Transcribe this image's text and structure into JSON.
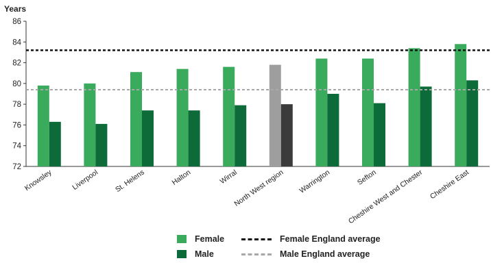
{
  "chart_data": {
    "type": "bar",
    "ylabel": "Years",
    "ylim": [
      72,
      86
    ],
    "yticks": [
      72,
      74,
      76,
      78,
      80,
      82,
      84,
      86
    ],
    "categories": [
      "Knowsley",
      "Liverpool",
      "St. Helens",
      "Halton",
      "Wirral",
      "North West region",
      "Warrington",
      "Sefton",
      "Cheshire West and Chester",
      "Cheshire East"
    ],
    "series": [
      {
        "name": "Female",
        "values": [
          79.8,
          80.0,
          81.1,
          81.4,
          81.6,
          81.8,
          82.4,
          82.4,
          83.4,
          83.8
        ]
      },
      {
        "name": "Male",
        "values": [
          76.3,
          76.1,
          77.4,
          77.4,
          77.9,
          78.0,
          79.0,
          78.1,
          79.7,
          80.3
        ]
      }
    ],
    "highlight_category": "North West region",
    "reference_lines": [
      {
        "name": "Female England average",
        "value": 83.2
      },
      {
        "name": "Male England average",
        "value": 79.4
      }
    ],
    "grid": false,
    "legend_position": "bottom"
  },
  "colors": {
    "female": "#3aaa5c",
    "male": "#0d6b3a",
    "female_region": "#9e9e9e",
    "male_region": "#3b3b3b",
    "female_ref_line": "#111111",
    "male_ref_line": "#a8a8a8",
    "axis": "#333333",
    "text": "#222222"
  }
}
